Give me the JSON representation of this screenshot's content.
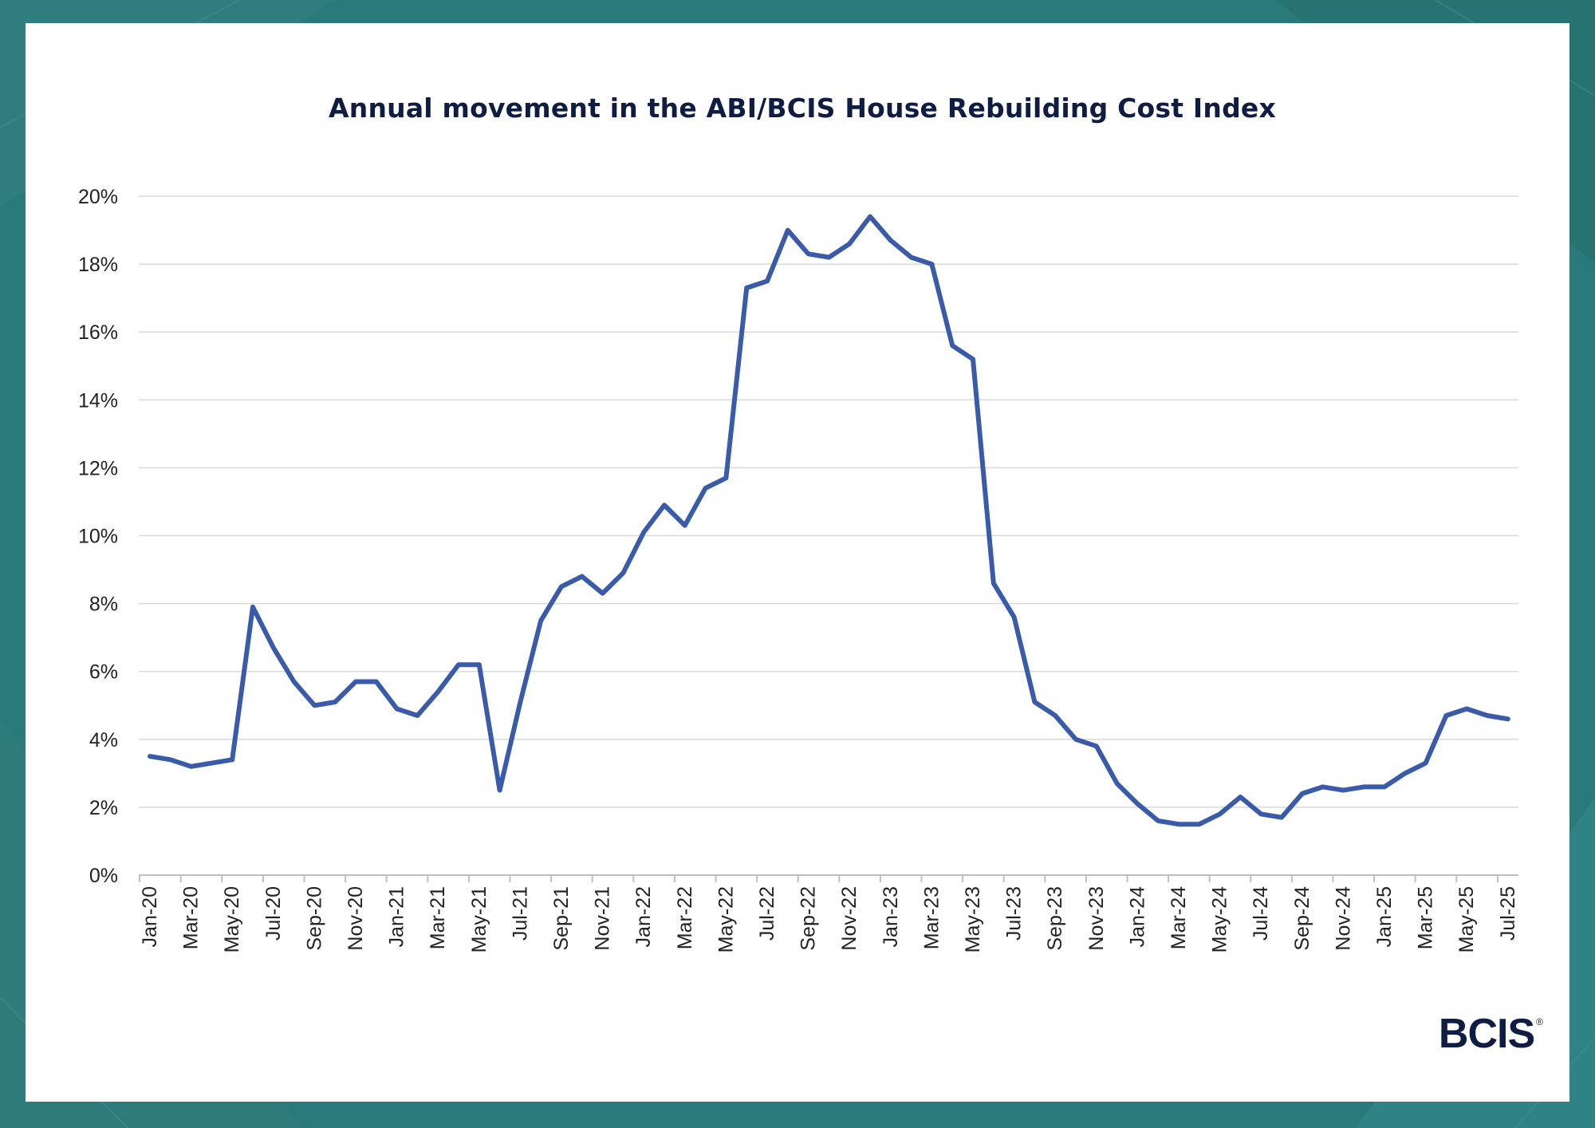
{
  "colors": {
    "background": "#2b7a7b",
    "card": "#ffffff",
    "line": "#3a5ba9",
    "title": "#0f1d45",
    "grid": "#d9d9d9"
  },
  "logo": {
    "text": "BCIS",
    "mark": "®"
  },
  "chart_data": {
    "type": "line",
    "title": "Annual movement in the ABI/BCIS House Rebuilding Cost Index",
    "xlabel": "",
    "ylabel": "",
    "ylim": [
      0,
      20
    ],
    "grid": true,
    "y_ticks": [
      "0%",
      "2%",
      "4%",
      "6%",
      "8%",
      "10%",
      "12%",
      "14%",
      "16%",
      "18%",
      "20%"
    ],
    "x_tick_labels": [
      "Jan-20",
      "Mar-20",
      "May-20",
      "Jul-20",
      "Sep-20",
      "Nov-20",
      "Jan-21",
      "Mar-21",
      "May-21",
      "Jul-21",
      "Sep-21",
      "Nov-21",
      "Jan-22",
      "Mar-22",
      "May-22",
      "Jul-22",
      "Sep-22",
      "Nov-22",
      "Jan-23",
      "Mar-23",
      "May-23",
      "Jul-23",
      "Sep-23",
      "Nov-23",
      "Jan-24",
      "Mar-24",
      "May-24",
      "Jul-24",
      "Sep-24",
      "Nov-24",
      "Jan-25",
      "Mar-25",
      "May-25",
      "Jul-25"
    ],
    "x": [
      "Jan-20",
      "Feb-20",
      "Mar-20",
      "Apr-20",
      "May-20",
      "Jun-20",
      "Jul-20",
      "Aug-20",
      "Sep-20",
      "Oct-20",
      "Nov-20",
      "Dec-20",
      "Jan-21",
      "Feb-21",
      "Mar-21",
      "Apr-21",
      "May-21",
      "Jun-21",
      "Jul-21",
      "Aug-21",
      "Sep-21",
      "Oct-21",
      "Nov-21",
      "Dec-21",
      "Jan-22",
      "Feb-22",
      "Mar-22",
      "Apr-22",
      "May-22",
      "Jun-22",
      "Jul-22",
      "Aug-22",
      "Sep-22",
      "Oct-22",
      "Nov-22",
      "Dec-22",
      "Jan-23",
      "Feb-23",
      "Mar-23",
      "Apr-23",
      "May-23",
      "Jun-23",
      "Jul-23",
      "Aug-23",
      "Sep-23",
      "Oct-23",
      "Nov-23",
      "Dec-23",
      "Jan-24",
      "Feb-24",
      "Mar-24",
      "Apr-24",
      "May-24",
      "Jun-24",
      "Jul-24",
      "Aug-24",
      "Sep-24",
      "Oct-24",
      "Nov-24",
      "Dec-24",
      "Jan-25",
      "Feb-25",
      "Mar-25",
      "Apr-25",
      "May-25",
      "Jun-25",
      "Jul-25"
    ],
    "series": [
      {
        "values": [
          3.5,
          3.4,
          3.2,
          3.3,
          3.4,
          7.9,
          6.7,
          5.7,
          5.0,
          5.1,
          5.7,
          5.7,
          4.9,
          4.7,
          5.4,
          6.2,
          6.2,
          2.5,
          5.1,
          7.5,
          8.5,
          8.8,
          8.3,
          8.9,
          10.1,
          10.9,
          10.3,
          11.4,
          11.7,
          17.3,
          17.5,
          19.0,
          18.3,
          18.2,
          18.6,
          19.4,
          18.7,
          18.2,
          18.0,
          15.6,
          15.2,
          8.6,
          7.6,
          5.1,
          4.7,
          4.0,
          3.8,
          2.7,
          2.1,
          1.6,
          1.5,
          1.5,
          1.8,
          2.3,
          1.8,
          1.7,
          2.4,
          2.6,
          2.5,
          2.6,
          2.6,
          3.0,
          3.3,
          4.7,
          4.9,
          4.7,
          4.6
        ]
      }
    ]
  }
}
